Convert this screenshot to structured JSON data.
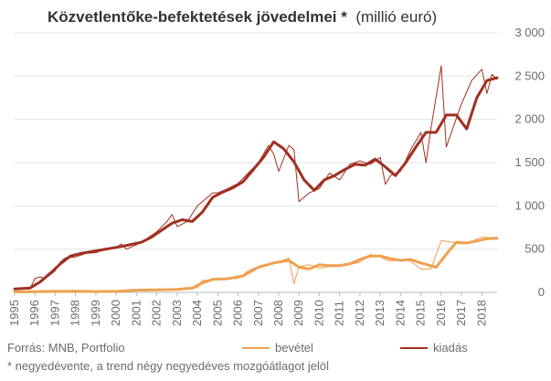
{
  "chart_data": {
    "type": "line",
    "title_bold": "Közvetlentőke-befektetések jövedelmei *",
    "title_rest": "(millió euró)",
    "y_ticks": [
      "0",
      "500",
      "1 000",
      "1 500",
      "2 000",
      "2 500",
      "3 000"
    ],
    "ylim": [
      0,
      3000
    ],
    "x_ticks": [
      "1995",
      "1996",
      "1997",
      "1998",
      "1999",
      "2000",
      "2001",
      "2002",
      "2003",
      "2004",
      "2005",
      "2006",
      "2007",
      "2008",
      "2009",
      "2010",
      "2011",
      "2012",
      "2013",
      "2014",
      "2015",
      "2016",
      "2017",
      "2018"
    ],
    "xlim": [
      1995,
      2018.75
    ],
    "grid": true,
    "legend_position": "bottom",
    "colors": {
      "bevetel": "#f0a050",
      "kiadas": "#a03020"
    },
    "series": [
      {
        "name": "bevétel",
        "raw": [
          [
            1995.0,
            5
          ],
          [
            1996.0,
            5
          ],
          [
            1996.5,
            10
          ],
          [
            1997.0,
            15
          ],
          [
            1997.5,
            15
          ],
          [
            1998.0,
            15
          ],
          [
            1998.5,
            10
          ],
          [
            1999.0,
            10
          ],
          [
            1999.5,
            10
          ],
          [
            2000.0,
            10
          ],
          [
            2000.5,
            20
          ],
          [
            2001.0,
            30
          ],
          [
            2001.5,
            30
          ],
          [
            2002.0,
            30
          ],
          [
            2002.5,
            30
          ],
          [
            2003.0,
            35
          ],
          [
            2003.5,
            40
          ],
          [
            2004.0,
            55
          ],
          [
            2004.25,
            140
          ],
          [
            2004.5,
            140
          ],
          [
            2005.0,
            160
          ],
          [
            2005.5,
            160
          ],
          [
            2006.0,
            160
          ],
          [
            2006.5,
            250
          ],
          [
            2007.0,
            300
          ],
          [
            2007.5,
            320
          ],
          [
            2008.0,
            350
          ],
          [
            2008.5,
            400
          ],
          [
            2008.75,
            100
          ],
          [
            2009.0,
            300
          ],
          [
            2009.5,
            320
          ],
          [
            2010.0,
            280
          ],
          [
            2010.5,
            300
          ],
          [
            2011.0,
            310
          ],
          [
            2011.5,
            320
          ],
          [
            2012.0,
            350
          ],
          [
            2012.5,
            440
          ],
          [
            2013.0,
            410
          ],
          [
            2013.25,
            380
          ],
          [
            2013.5,
            360
          ],
          [
            2014.0,
            380
          ],
          [
            2014.5,
            360
          ],
          [
            2015.0,
            270
          ],
          [
            2015.5,
            270
          ],
          [
            2016.0,
            600
          ],
          [
            2016.5,
            580
          ],
          [
            2017.0,
            560
          ],
          [
            2017.5,
            590
          ],
          [
            2018.0,
            640
          ],
          [
            2018.5,
            630
          ]
        ],
        "trend": [
          [
            1995.0,
            5
          ],
          [
            1996.0,
            7
          ],
          [
            1997.0,
            12
          ],
          [
            1998.0,
            13
          ],
          [
            1999.0,
            10
          ],
          [
            2000.0,
            12
          ],
          [
            2001.0,
            25
          ],
          [
            2002.0,
            30
          ],
          [
            2003.0,
            35
          ],
          [
            2003.75,
            50
          ],
          [
            2004.25,
            110
          ],
          [
            2004.75,
            150
          ],
          [
            2005.5,
            158
          ],
          [
            2006.25,
            190
          ],
          [
            2007.0,
            290
          ],
          [
            2007.75,
            340
          ],
          [
            2008.5,
            370
          ],
          [
            2009.0,
            290
          ],
          [
            2009.5,
            270
          ],
          [
            2010.0,
            320
          ],
          [
            2010.5,
            310
          ],
          [
            2011.0,
            310
          ],
          [
            2011.5,
            330
          ],
          [
            2012.0,
            380
          ],
          [
            2012.5,
            420
          ],
          [
            2013.0,
            420
          ],
          [
            2013.5,
            390
          ],
          [
            2014.0,
            370
          ],
          [
            2014.5,
            380
          ],
          [
            2015.0,
            340
          ],
          [
            2015.75,
            290
          ],
          [
            2016.25,
            440
          ],
          [
            2016.75,
            580
          ],
          [
            2017.25,
            570
          ],
          [
            2017.75,
            595
          ],
          [
            2018.25,
            620
          ],
          [
            2018.75,
            625
          ]
        ]
      },
      {
        "name": "kiadás",
        "raw": [
          [
            1995.0,
            40
          ],
          [
            1995.75,
            40
          ],
          [
            1996.0,
            160
          ],
          [
            1996.25,
            180
          ],
          [
            1996.5,
            160
          ],
          [
            1997.0,
            250
          ],
          [
            1997.25,
            350
          ],
          [
            1997.5,
            400
          ],
          [
            1998.0,
            410
          ],
          [
            1998.5,
            450
          ],
          [
            1999.0,
            460
          ],
          [
            1999.5,
            500
          ],
          [
            2000.0,
            520
          ],
          [
            2000.25,
            560
          ],
          [
            2000.5,
            500
          ],
          [
            2001.0,
            550
          ],
          [
            2001.5,
            620
          ],
          [
            2002.0,
            700
          ],
          [
            2002.5,
            820
          ],
          [
            2002.75,
            900
          ],
          [
            2003.0,
            760
          ],
          [
            2003.5,
            820
          ],
          [
            2004.0,
            1000
          ],
          [
            2004.5,
            1100
          ],
          [
            2004.75,
            1150
          ],
          [
            2005.0,
            1150
          ],
          [
            2005.5,
            1200
          ],
          [
            2006.0,
            1260
          ],
          [
            2006.5,
            1380
          ],
          [
            2007.0,
            1500
          ],
          [
            2007.5,
            1700
          ],
          [
            2007.75,
            1600
          ],
          [
            2008.0,
            1400
          ],
          [
            2008.5,
            1700
          ],
          [
            2008.75,
            1650
          ],
          [
            2009.0,
            1050
          ],
          [
            2009.5,
            1150
          ],
          [
            2010.0,
            1200
          ],
          [
            2010.5,
            1380
          ],
          [
            2011.0,
            1300
          ],
          [
            2011.5,
            1480
          ],
          [
            2012.0,
            1520
          ],
          [
            2012.5,
            1480
          ],
          [
            2013.0,
            1560
          ],
          [
            2013.25,
            1250
          ],
          [
            2013.5,
            1350
          ],
          [
            2014.0,
            1400
          ],
          [
            2014.5,
            1650
          ],
          [
            2015.0,
            1850
          ],
          [
            2015.25,
            1500
          ],
          [
            2015.5,
            1900
          ],
          [
            2016.0,
            2620
          ],
          [
            2016.25,
            1680
          ],
          [
            2016.5,
            1850
          ],
          [
            2017.0,
            2180
          ],
          [
            2017.5,
            2450
          ],
          [
            2018.0,
            2580
          ],
          [
            2018.25,
            2300
          ],
          [
            2018.5,
            2520
          ],
          [
            2018.75,
            2460
          ]
        ],
        "trend": [
          [
            1995.0,
            40
          ],
          [
            1995.75,
            50
          ],
          [
            1996.25,
            120
          ],
          [
            1996.75,
            220
          ],
          [
            1997.25,
            330
          ],
          [
            1997.75,
            420
          ],
          [
            1998.25,
            450
          ],
          [
            1998.75,
            470
          ],
          [
            1999.25,
            490
          ],
          [
            1999.75,
            510
          ],
          [
            2000.25,
            530
          ],
          [
            2000.75,
            555
          ],
          [
            2001.25,
            580
          ],
          [
            2001.75,
            640
          ],
          [
            2002.25,
            720
          ],
          [
            2002.75,
            800
          ],
          [
            2003.25,
            840
          ],
          [
            2003.75,
            820
          ],
          [
            2004.25,
            930
          ],
          [
            2004.75,
            1100
          ],
          [
            2005.25,
            1160
          ],
          [
            2005.75,
            1210
          ],
          [
            2006.25,
            1280
          ],
          [
            2006.75,
            1420
          ],
          [
            2007.25,
            1560
          ],
          [
            2007.75,
            1740
          ],
          [
            2008.25,
            1660
          ],
          [
            2008.75,
            1510
          ],
          [
            2009.25,
            1300
          ],
          [
            2009.75,
            1180
          ],
          [
            2010.25,
            1300
          ],
          [
            2010.75,
            1350
          ],
          [
            2011.25,
            1420
          ],
          [
            2011.75,
            1480
          ],
          [
            2012.25,
            1470
          ],
          [
            2012.75,
            1540
          ],
          [
            2013.25,
            1450
          ],
          [
            2013.75,
            1350
          ],
          [
            2014.25,
            1500
          ],
          [
            2014.75,
            1680
          ],
          [
            2015.25,
            1850
          ],
          [
            2015.75,
            1850
          ],
          [
            2016.25,
            2050
          ],
          [
            2016.75,
            2050
          ],
          [
            2017.25,
            1890
          ],
          [
            2017.75,
            2250
          ],
          [
            2018.25,
            2450
          ],
          [
            2018.75,
            2480
          ]
        ]
      }
    ]
  },
  "footer": {
    "source": "Forrás: MNB, Portfolio",
    "note": "* negyedévente, a trend négy negyedéves mozgóátlagot jelöl"
  },
  "legend": {
    "bevetel": "bevétel",
    "kiadas": "kiadás"
  }
}
